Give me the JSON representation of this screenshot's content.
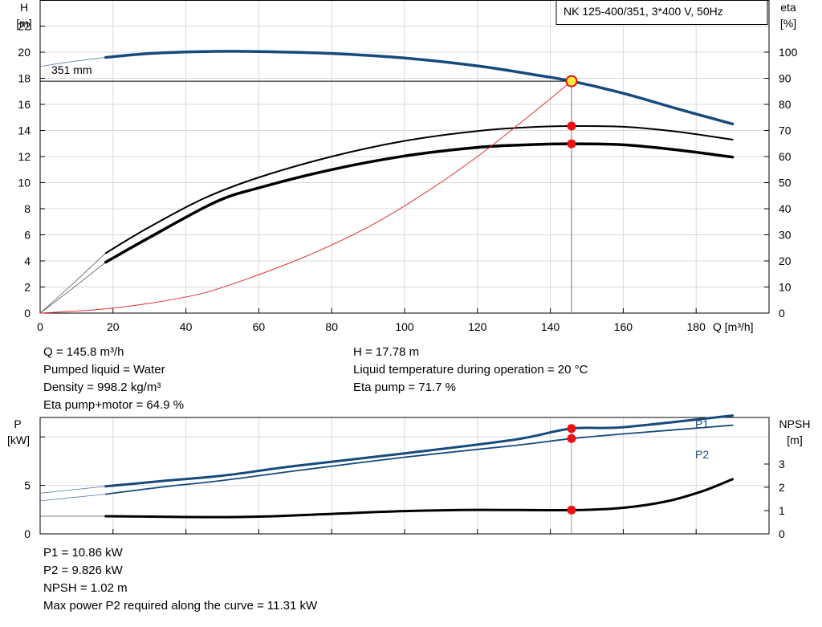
{
  "chart_data": [
    {
      "type": "line",
      "title": "NK 125-400/351, 3*400 V, 50Hz",
      "xlabel": "Q [m³/h]",
      "ylabel": "H\n[m]",
      "y2label": "eta\n[%]",
      "xlim": [
        0,
        200
      ],
      "ylim": [
        0,
        24
      ],
      "y2lim": [
        0,
        120
      ],
      "x_ticks": [
        0,
        20,
        40,
        60,
        80,
        100,
        120,
        140,
        160,
        180
      ],
      "y_ticks": [
        0,
        2,
        4,
        6,
        8,
        10,
        12,
        14,
        16,
        18,
        20,
        22
      ],
      "y2_ticks": [
        0,
        10,
        20,
        30,
        40,
        50,
        60,
        70,
        80,
        90,
        100
      ],
      "grid": true,
      "curve_label": "351 mm",
      "series": [
        {
          "role": "head",
          "axis": "left",
          "color": "#174a7c",
          "extension_color": "#5a7ea8",
          "extension": [
            [
              0,
              18.9
            ],
            [
              8,
              19.25
            ],
            [
              18,
              19.6
            ]
          ],
          "points": [
            [
              18,
              19.6
            ],
            [
              30,
              19.9
            ],
            [
              45,
              20.05
            ],
            [
              60,
              20.05
            ],
            [
              80,
              19.9
            ],
            [
              100,
              19.55
            ],
            [
              120,
              18.95
            ],
            [
              135,
              18.3
            ],
            [
              145.8,
              17.78
            ],
            [
              160,
              16.85
            ],
            [
              175,
              15.65
            ],
            [
              190,
              14.5
            ]
          ]
        },
        {
          "role": "eta-pump",
          "axis": "right",
          "color": "#000000",
          "width": 2,
          "extension": [
            [
              0,
              0
            ],
            [
              8,
              10
            ],
            [
              18,
              23
            ]
          ],
          "points": [
            [
              18,
              23
            ],
            [
              30,
              33
            ],
            [
              45,
              44
            ],
            [
              60,
              52
            ],
            [
              80,
              60
            ],
            [
              100,
              66
            ],
            [
              120,
              69.8
            ],
            [
              135,
              71.3
            ],
            [
              145.8,
              71.7
            ],
            [
              160,
              71.4
            ],
            [
              175,
              69.5
            ],
            [
              190,
              66.5
            ]
          ]
        },
        {
          "role": "eta-pump-motor",
          "axis": "right",
          "color": "#000000",
          "width": 3.5,
          "extension": [
            [
              0,
              0
            ],
            [
              8,
              8.5
            ],
            [
              18,
              19.5
            ]
          ],
          "points": [
            [
              18,
              19.5
            ],
            [
              30,
              29
            ],
            [
              48,
              42.5
            ],
            [
              60,
              48
            ],
            [
              80,
              55
            ],
            [
              100,
              60.2
            ],
            [
              120,
              63.5
            ],
            [
              135,
              64.6
            ],
            [
              145.8,
              64.9
            ],
            [
              160,
              64.5
            ],
            [
              175,
              62.5
            ],
            [
              190,
              59.8
            ]
          ]
        },
        {
          "role": "system",
          "axis": "left",
          "color": "#e03030",
          "width": 1,
          "points": [
            [
              0,
              0
            ],
            [
              17,
              0.3
            ],
            [
              30,
              0.75
            ],
            [
              45,
              1.55
            ],
            [
              60,
              2.95
            ],
            [
              75,
              4.6
            ],
            [
              90,
              6.6
            ],
            [
              105,
              9.1
            ],
            [
              120,
              12.0
            ],
            [
              135,
              15.3
            ],
            [
              145.8,
              17.78
            ]
          ]
        }
      ],
      "operating_point": {
        "Q": 145.8,
        "H": 17.78,
        "eta_pump": 71.7,
        "eta_pump_motor": 64.9,
        "fill": "#ffef40",
        "stroke": "#e01010",
        "marker_color": "#ee1111"
      }
    },
    {
      "type": "line",
      "ylabel": "P\n[kW]",
      "y2label": "NPSH\n[m]",
      "xlim": [
        0,
        200
      ],
      "ylim": [
        0,
        12
      ],
      "y_ticks": [
        0,
        5
      ],
      "y_minor_ticks": [
        10
      ],
      "y2lim": [
        0,
        5
      ],
      "y2_ticks": [
        0,
        1,
        2,
        3
      ],
      "grid": true,
      "series": [
        {
          "name": "P1",
          "axis": "left",
          "color": "#174a7c",
          "width": 3,
          "extension": [
            [
              0,
              4.2
            ],
            [
              18,
              4.9
            ]
          ],
          "points": [
            [
              18,
              4.9
            ],
            [
              35,
              5.5
            ],
            [
              50,
              6.0
            ],
            [
              70,
              7.0
            ],
            [
              100,
              8.3
            ],
            [
              130,
              9.7
            ],
            [
              145.8,
              10.86
            ],
            [
              160,
              11.0
            ],
            [
              190,
              12.2
            ]
          ]
        },
        {
          "name": "P2",
          "axis": "left",
          "color": "#174a7c",
          "width": 1.8,
          "extension": [
            [
              0,
              3.4
            ],
            [
              18,
              4.1
            ]
          ],
          "points": [
            [
              18,
              4.1
            ],
            [
              35,
              4.9
            ],
            [
              50,
              5.5
            ],
            [
              70,
              6.5
            ],
            [
              100,
              7.9
            ],
            [
              130,
              9.1
            ],
            [
              145.8,
              9.826
            ],
            [
              160,
              10.3
            ],
            [
              190,
              11.2
            ]
          ]
        },
        {
          "name": "NPSH",
          "axis": "right",
          "color": "#000000",
          "width": 3,
          "extension": [
            [
              0,
              0.76
            ],
            [
              18,
              0.76
            ]
          ],
          "points": [
            [
              18,
              0.76
            ],
            [
              30,
              0.74
            ],
            [
              45,
              0.72
            ],
            [
              60,
              0.74
            ],
            [
              80,
              0.86
            ],
            [
              100,
              0.98
            ],
            [
              120,
              1.03
            ],
            [
              145.8,
              1.02
            ],
            [
              160,
              1.12
            ],
            [
              172,
              1.4
            ],
            [
              182,
              1.85
            ],
            [
              190,
              2.35
            ]
          ]
        }
      ],
      "operating_point": {
        "Q": 145.8,
        "P1": 10.86,
        "P2": 9.826,
        "NPSH": 1.02,
        "marker_color": "#ee1111"
      }
    }
  ],
  "readout_top": {
    "left": [
      "Q = 145.8 m³/h",
      "Pumped liquid = Water",
      "Density = 998.2 kg/m³",
      "Eta pump+motor = 64.9 %"
    ],
    "right": [
      "H = 17.78 m",
      "Liquid temperature during operation = 20 °C",
      "Eta pump = 71.7 %"
    ]
  },
  "readout_bottom": [
    "P1 = 10.86 kW",
    "P2 = 9.826 kW",
    "NPSH = 1.02 m",
    "Max power P2 required along the curve = 11.31 kW"
  ]
}
